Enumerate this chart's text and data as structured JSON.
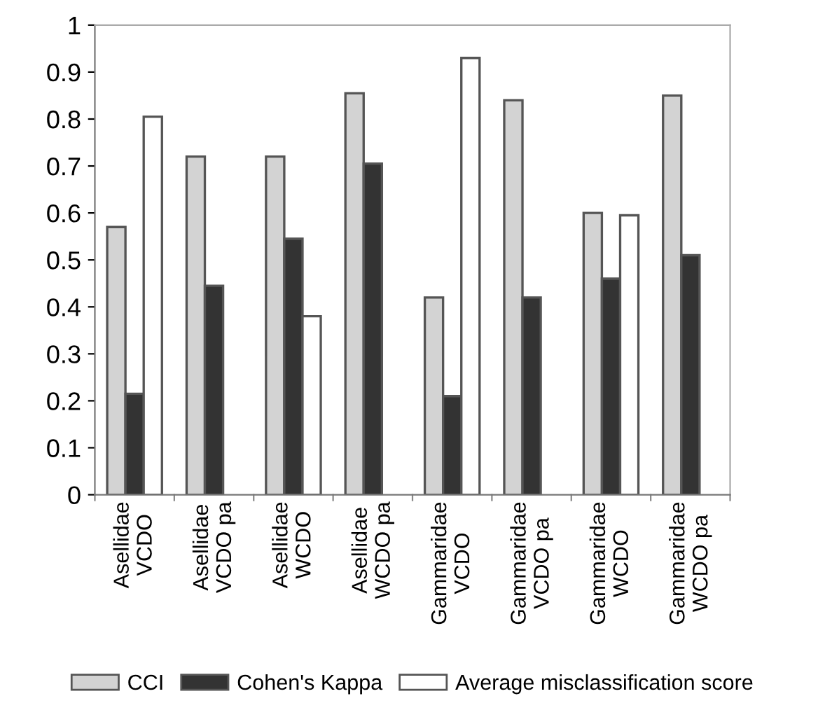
{
  "chart_data": {
    "type": "bar",
    "categories": [
      "Asellidae\nVCDO",
      "Asellidae\nVCDO pa",
      "Asellidae\nWCDO",
      "Asellidae\nWCDO pa",
      "Gammaridae\nVCDO",
      "Gammaridae\nVCDO pa",
      "Gammaridae\nWCDO",
      "Gammaridae\nWCDO pa"
    ],
    "series": [
      {
        "name": "CCI",
        "color": "#d3d3d3",
        "values": [
          0.57,
          0.72,
          0.72,
          0.855,
          0.42,
          0.84,
          0.6,
          0.85
        ]
      },
      {
        "name": "Cohen's Kappa",
        "color": "#333333",
        "values": [
          0.215,
          0.445,
          0.545,
          0.705,
          0.21,
          0.42,
          0.46,
          0.51
        ]
      },
      {
        "name": "Average misclassification score",
        "color": "#ffffff",
        "values": [
          0.805,
          null,
          0.38,
          null,
          0.93,
          null,
          0.595,
          null
        ]
      }
    ],
    "ylim": [
      0,
      1
    ],
    "yticks": [
      0,
      0.1,
      0.2,
      0.3,
      0.4,
      0.5,
      0.6,
      0.7,
      0.8,
      0.9,
      1
    ],
    "grid": false,
    "legend": "bottom"
  }
}
